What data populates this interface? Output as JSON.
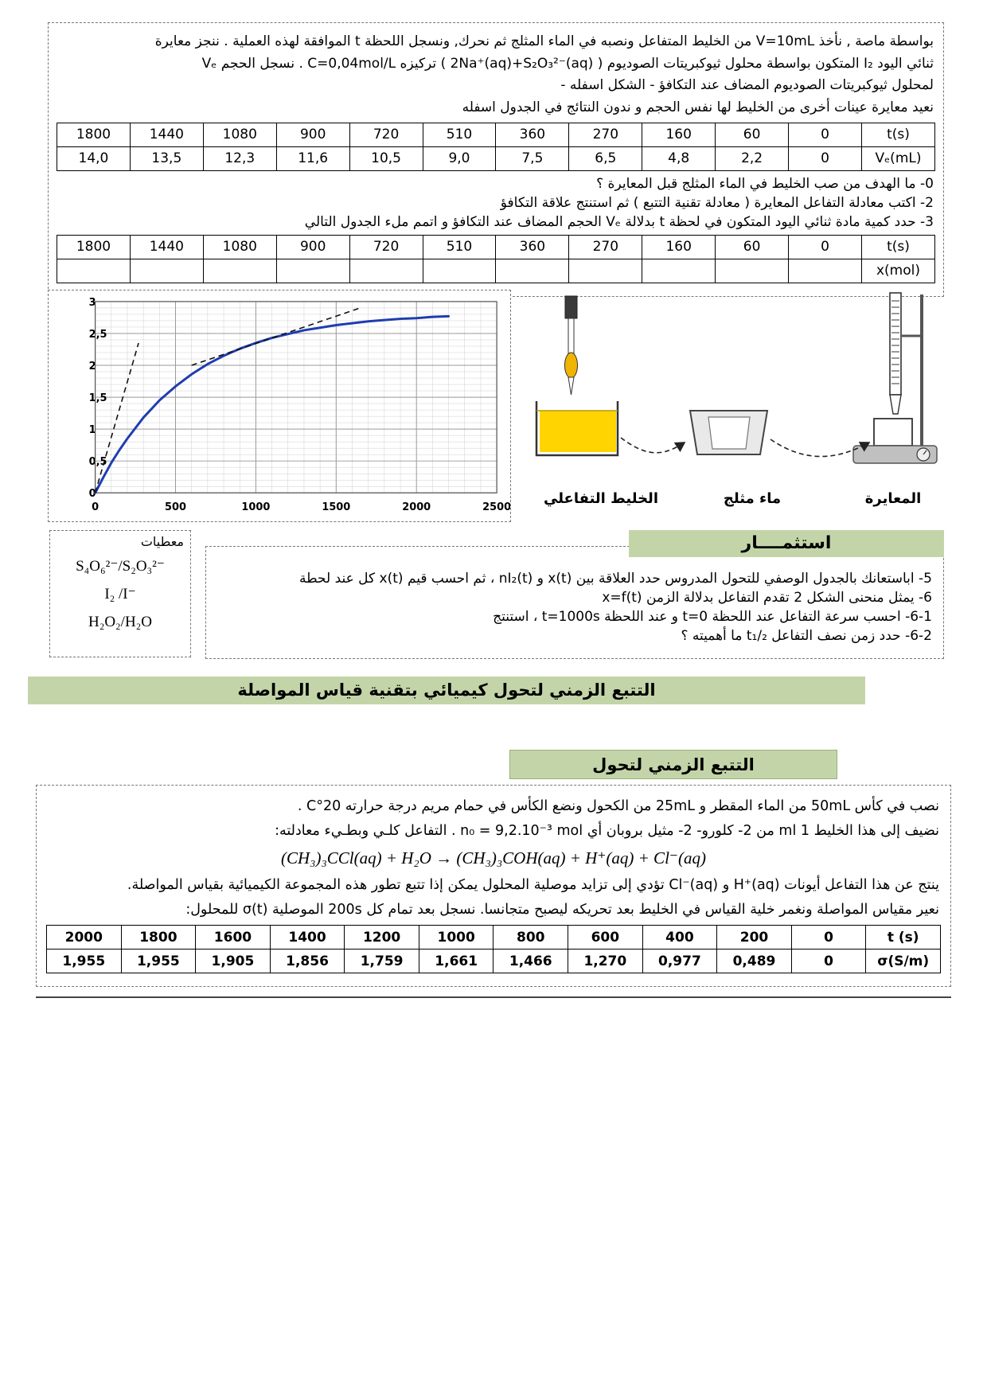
{
  "colors": {
    "banner_green": "#c3d5a8",
    "curve_blue": "#1f3db0",
    "liquid_yellow": "#ffd400"
  },
  "section1": {
    "intro_lines": [
      "بواسطة ماصة , نأخذ V=10mL من الخليط المتفاعل ونصبه في الماء المثلج ثم نحرك, ونسجل اللحظة t الموافقة لهذه العملية . ننجز معايرة",
      "ثنائي اليود I₂ المتكون بواسطة محلول ثيوكبريتات الصوديوم ( 2Na⁺(aq)+S₂O₃²⁻(aq) ) تركيزه C=0,04mol/L . نسجل الحجم Vₑ",
      "لمحلول ثيوكبريتات الصوديوم المضاف عند التكافؤ - الشكل اسفله -",
      "نعيد معايرة  عينات أخرى من الخليط لها نفس الحجم و ندون النتائج في الجدول اسفله"
    ],
    "table1_rows": [
      [
        "1800",
        "1440",
        "1080",
        "900",
        "720",
        "510",
        "360",
        "270",
        "160",
        "60",
        "0",
        "t(s)"
      ],
      [
        "14,0",
        "13,5",
        "12,3",
        "11,6",
        "10,5",
        "9,0",
        "7,5",
        "6,5",
        "4,8",
        "2,2",
        "0",
        "Vₑ(mL)"
      ]
    ],
    "questions": [
      "0- ما الهدف من صب الخليط في الماء المثلج قبل المعايرة ؟",
      "2- اكتب معادلة التفاعل المعايرة ( معادلة تقنية التتبع ) ثم استنتج علاقة التكافؤ",
      "3- حدد كمية مادة ثنائي اليود المتكون  في لحظة t بدلالة Vₑ الحجم المضاف عند التكافؤ و اتمم ملء الجدول التالي"
    ],
    "table2_rows": [
      [
        "1800",
        "1440",
        "1080",
        "900",
        "720",
        "510",
        "360",
        "270",
        "160",
        "60",
        "0",
        "t(s)"
      ],
      [
        "",
        "",
        "",
        "",
        "",
        "",
        "",
        "",
        "",
        "",
        "",
        "x(mol)"
      ]
    ]
  },
  "figure": {
    "labels": {
      "mixture": "الخليط التفاعلي",
      "ice_water": "ماء مثلج",
      "titration": "المعايرة"
    }
  },
  "data_box": {
    "title": "معطيات",
    "couples": [
      "S₄O₆²⁻/S₂O₃²⁻",
      "I₂ /I⁻",
      "H₂O₂/H₂O"
    ]
  },
  "exploit": {
    "title": "استثمــــار",
    "questions": [
      "5- اباستعانك بالجدول الوصفي للتحول المدروس حدد العلاقة بين x(t) و nI₂(t) ، ثم احسب قيم x(t) كل عند لحطة",
      "6- يمثل منحنى الشكل 2 تقدم التفاعل بدلالة الزمن x=f(t)",
      "6-1- احسب سرعة التفاعل عند اللحظة t=0 و عند اللحظة t=1000s ، استنتج",
      "6-2- حدد زمن نصف التفاعل t₁/₂ ما أهميته ؟"
    ]
  },
  "banner": "التتبع الزمني لتحول كيميائي بتقنية قياس المواصلة",
  "section2": {
    "title": "التتبع الزمني لتحول",
    "p1": "نصب في كأس  50mL  من الماء المقطر و 25mL من الكحول ونضع الكأس في حمام مريم درجة حرارته 20°C .",
    "p2": "نضيف إلى هذا الخليط 1 ml من 2- كلورو- 2- مثيل بروبان أي n₀ = 9,2.10⁻³ mol . التفاعل كلـي وبطـيء معادلته:",
    "equation": "(CH₃)₃CCl(aq) + H₂O → (CH₃)₃COH(aq) + H⁺(aq) + Cl⁻(aq)",
    "p3": "ينتج عن هذا التفاعل أيونات H⁺(aq) و Cl⁻(aq) تؤدي إلى تزايد موصلية المحلول يمكن إذا تتبع تطور هذه المجموعة الكيميائية بقياس المواصلة.",
    "p4": "نعير مقياس المواصلة ونغمر خلية القياس في الخليط بعد تحريكه ليصبح متجانسا. نسجل بعد تمام كل 200s الموصلية σ(t) للمحلول:",
    "sigma_table_rows": [
      [
        "2000",
        "1800",
        "1600",
        "1400",
        "1200",
        "1000",
        "800",
        "600",
        "400",
        "200",
        "0",
        "t (s)"
      ],
      [
        "1,955",
        "1,955",
        "1,905",
        "1,856",
        "1,759",
        "1,661",
        "1,466",
        "1,270",
        "0,977",
        "0,489",
        "0",
        "σ(S/m)"
      ]
    ]
  },
  "chart_data": {
    "type": "line",
    "title": "",
    "xlabel": "",
    "ylabel": "",
    "xlim": [
      0,
      2500
    ],
    "ylim": [
      0,
      3
    ],
    "x_ticks": [
      0,
      500,
      1000,
      1500,
      2000,
      2500
    ],
    "x_tick_labels": [
      "0",
      "500",
      "1000",
      "1500",
      "2000",
      "2500"
    ],
    "y_ticks": [
      0,
      0.5,
      1,
      1.5,
      2,
      2.5,
      3
    ],
    "y_tick_labels": [
      "0",
      "0,5",
      "1",
      "1,5",
      "2",
      "2,5",
      "3"
    ],
    "grid": true,
    "grid_minor": {
      "x": 100,
      "y": 0.1
    },
    "series": [
      {
        "name": "x = f(t)",
        "color": "#1f3db0",
        "x": [
          0,
          50,
          100,
          150,
          200,
          300,
          400,
          500,
          600,
          700,
          800,
          900,
          1000,
          1100,
          1200,
          1300,
          1400,
          1500,
          1600,
          1700,
          1800,
          1900,
          2000,
          2100,
          2200
        ],
        "y": [
          0,
          0.24,
          0.47,
          0.67,
          0.85,
          1.18,
          1.45,
          1.67,
          1.86,
          2.02,
          2.15,
          2.26,
          2.35,
          2.43,
          2.49,
          2.55,
          2.59,
          2.63,
          2.66,
          2.69,
          2.71,
          2.73,
          2.74,
          2.76,
          2.77
        ]
      }
    ],
    "tangent_lines": [
      {
        "x1": 0,
        "y1": 0,
        "x2": 270,
        "y2": 2.35
      },
      {
        "x1": 600,
        "y1": 2.0,
        "x2": 1650,
        "y2": 2.9
      }
    ]
  }
}
